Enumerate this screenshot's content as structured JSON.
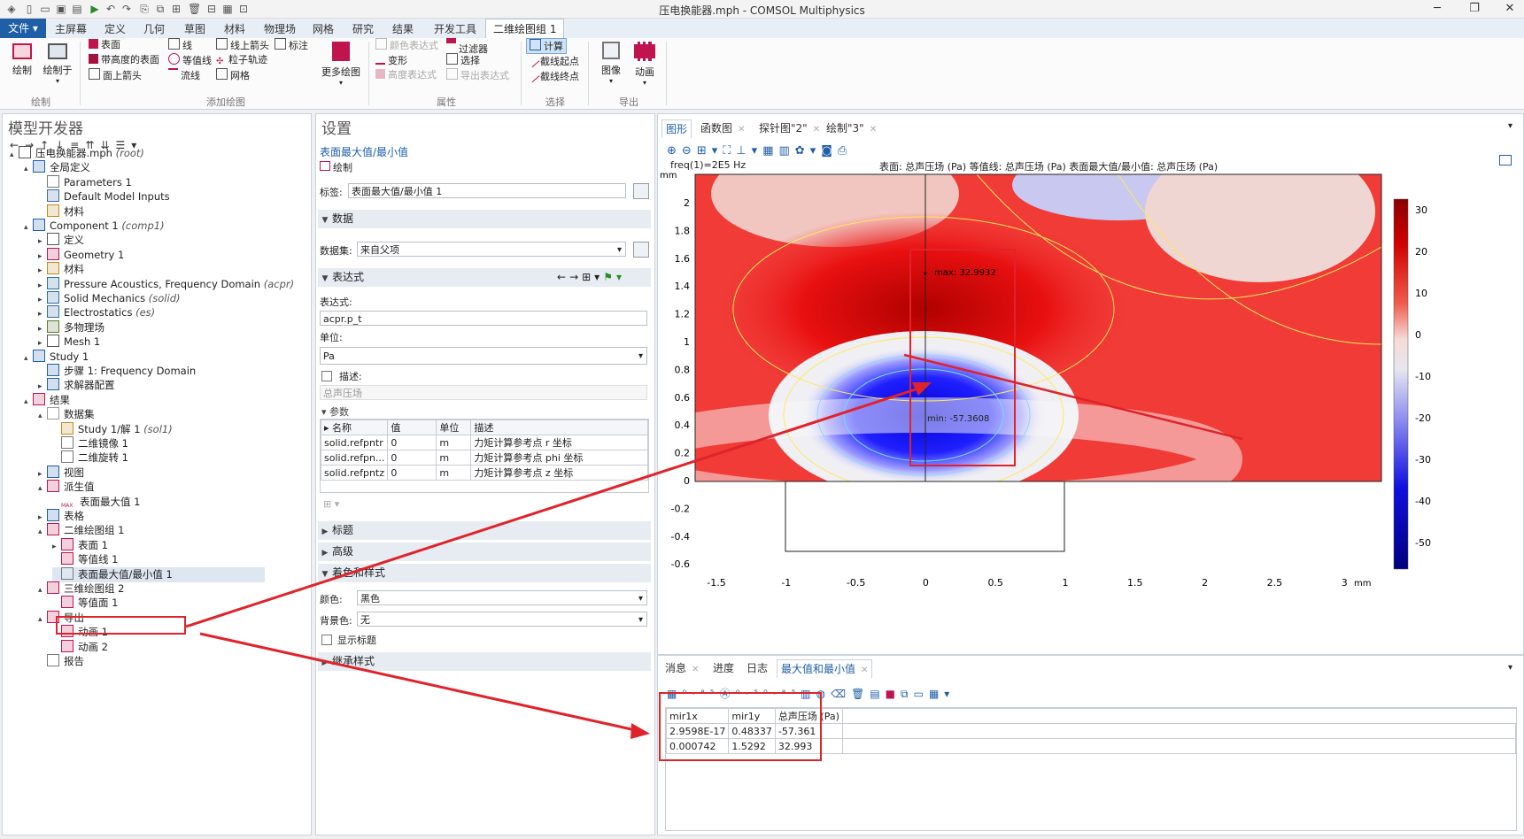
{
  "window": {
    "title": "压电换能器.mph - COMSOL Multiphysics"
  },
  "ribbon_tabs": [
    "文件 ▾",
    "主屏幕",
    "定义",
    "几何",
    "草图",
    "材料",
    "物理场",
    "网格",
    "研究",
    "结果",
    "开发工具",
    "二维绘图组 1"
  ],
  "ribbon": {
    "draw": "绘制",
    "draw_in": "绘制于",
    "group_draw": "绘制",
    "surface": "表面",
    "height_surface": "带高度的表面",
    "surface_arrow": "面上箭头",
    "line": "线",
    "contour": "等值线",
    "streamline": "流线",
    "line_arrow": "线上箭头",
    "particle_traj": "粒子轨迹",
    "mesh": "网格",
    "annotation": "标注",
    "more_plots": "更多绘图",
    "group_add": "添加绘图",
    "color_expr": "颜色表达式",
    "deform": "变形",
    "height_expr": "高度表达式",
    "filter": "过滤器",
    "selection": "选择",
    "export_expr": "导出表达式",
    "group_attr": "属性",
    "compute": "计算",
    "cut_start": "截线起点",
    "cut_end": "截线终点",
    "group_select": "选择",
    "image": "图像",
    "animation": "动画",
    "group_export": "导出"
  },
  "model_builder": {
    "title": "模型开发器",
    "tree": [
      {
        "label": "压电换能器.mph",
        "tag": "(root)"
      },
      {
        "label": "全局定义",
        "tag": ""
      },
      {
        "label": "Parameters 1",
        "tag": ""
      },
      {
        "label": "Default Model Inputs",
        "tag": ""
      },
      {
        "label": "材料",
        "tag": ""
      },
      {
        "label": "Component 1",
        "tag": "(comp1)"
      },
      {
        "label": "定义",
        "tag": ""
      },
      {
        "label": "Geometry 1",
        "tag": ""
      },
      {
        "label": "材料",
        "tag": ""
      },
      {
        "label": "Pressure Acoustics, Frequency Domain",
        "tag": "(acpr)"
      },
      {
        "label": "Solid Mechanics",
        "tag": "(solid)"
      },
      {
        "label": "Electrostatics",
        "tag": "(es)"
      },
      {
        "label": "多物理场",
        "tag": ""
      },
      {
        "label": "Mesh 1",
        "tag": ""
      },
      {
        "label": "Study 1",
        "tag": ""
      },
      {
        "label": "步骤 1: Frequency Domain",
        "tag": ""
      },
      {
        "label": "求解器配置",
        "tag": ""
      },
      {
        "label": "结果",
        "tag": ""
      },
      {
        "label": "数据集",
        "tag": ""
      },
      {
        "label": "Study 1/解 1",
        "tag": "(sol1)"
      },
      {
        "label": "二维镜像 1",
        "tag": ""
      },
      {
        "label": "二维旋转 1",
        "tag": ""
      },
      {
        "label": "视图",
        "tag": ""
      },
      {
        "label": "派生值",
        "tag": ""
      },
      {
        "label": "表面最大值 1",
        "tag": ""
      },
      {
        "label": "表格",
        "tag": ""
      },
      {
        "label": "二维绘图组 1",
        "tag": ""
      },
      {
        "label": "表面 1",
        "tag": ""
      },
      {
        "label": "等值线 1",
        "tag": ""
      },
      {
        "label": "表面最大值/最小值 1",
        "tag": ""
      },
      {
        "label": "三维绘图组 2",
        "tag": ""
      },
      {
        "label": "等值面 1",
        "tag": ""
      },
      {
        "label": "导出",
        "tag": ""
      },
      {
        "label": "动画 1",
        "tag": ""
      },
      {
        "label": "动画 2",
        "tag": ""
      },
      {
        "label": "报告",
        "tag": ""
      }
    ],
    "max_icon_text": "MAX"
  },
  "settings": {
    "title": "设置",
    "subtitle": "表面最大值/最小值",
    "plot_btn": "绘制",
    "label_caption": "标签:",
    "label_value": "表面最大值/最小值 1",
    "sec_data": "数据",
    "dataset_caption": "数据集:",
    "dataset_value": "来自父项",
    "sec_expr": "表达式",
    "expr_caption": "表达式:",
    "expr_value": "acpr.p_t",
    "unit_caption": "单位:",
    "unit_value": "Pa",
    "desc_caption": "描述:",
    "desc_value": "总声压场",
    "params_caption": "参数",
    "param_headers": [
      "名称",
      "值",
      "单位",
      "描述"
    ],
    "params": [
      [
        "solid.refpntr",
        "0",
        "m",
        "力矩计算参考点 r 坐标"
      ],
      [
        "solid.refpn...",
        "0",
        "m",
        "力矩计算参考点 phi 坐标"
      ],
      [
        "solid.refpntz",
        "0",
        "m",
        "力矩计算参考点 z 坐标"
      ]
    ],
    "sec_title": "标题",
    "sec_advanced": "高级",
    "sec_coloring": "着色和样式",
    "color_caption": "颜色:",
    "color_value": "黑色",
    "bg_caption": "背景色:",
    "bg_value": "无",
    "show_caption": "显示标题",
    "sec_inherit": "继承样式"
  },
  "graphics": {
    "tabs": [
      "图形",
      "函数图",
      "探针图\"2\"",
      "绘制\"3\""
    ],
    "freq_label": "freq(1)=2E5 Hz",
    "plot_title": "表面: 总声压场 (Pa)  等值线: 总声压场 (Pa)  表面最大值/最小值: 总声压场 (Pa)",
    "unit_y": "mm",
    "unit_x": "mm",
    "y_ticks": [
      "2",
      "1.8",
      "1.6",
      "1.4",
      "1.2",
      "1",
      "0.8",
      "0.6",
      "0.4",
      "0.2",
      "0",
      "-0.2",
      "-0.4",
      "-0.6"
    ],
    "x_ticks": [
      "-1.5",
      "-1",
      "-0.5",
      "0",
      "0.5",
      "1",
      "1.5",
      "2",
      "2.5",
      "3"
    ],
    "max_label": "max: 32.9932",
    "min_label": "min: -57.3608",
    "colorbar_ticks": [
      "30",
      "20",
      "10",
      "0",
      "-10",
      "-20",
      "-30",
      "-40",
      "-50"
    ]
  },
  "messages": {
    "tabs": [
      "消息",
      "进度",
      "日志",
      "最大值和最小值"
    ],
    "headers": [
      "mir1x",
      "mir1y",
      "总声压场 (Pa)"
    ],
    "rows": [
      [
        "2.9598E-17",
        "0.48337",
        "-57.361"
      ],
      [
        "0.000742",
        "1.5292",
        "32.993"
      ]
    ]
  },
  "colors": {
    "accent": "#1f5fa8",
    "annotation_red": "#e0232a",
    "pressure_max": "#8b0000",
    "pressure_min": "#00008b"
  }
}
